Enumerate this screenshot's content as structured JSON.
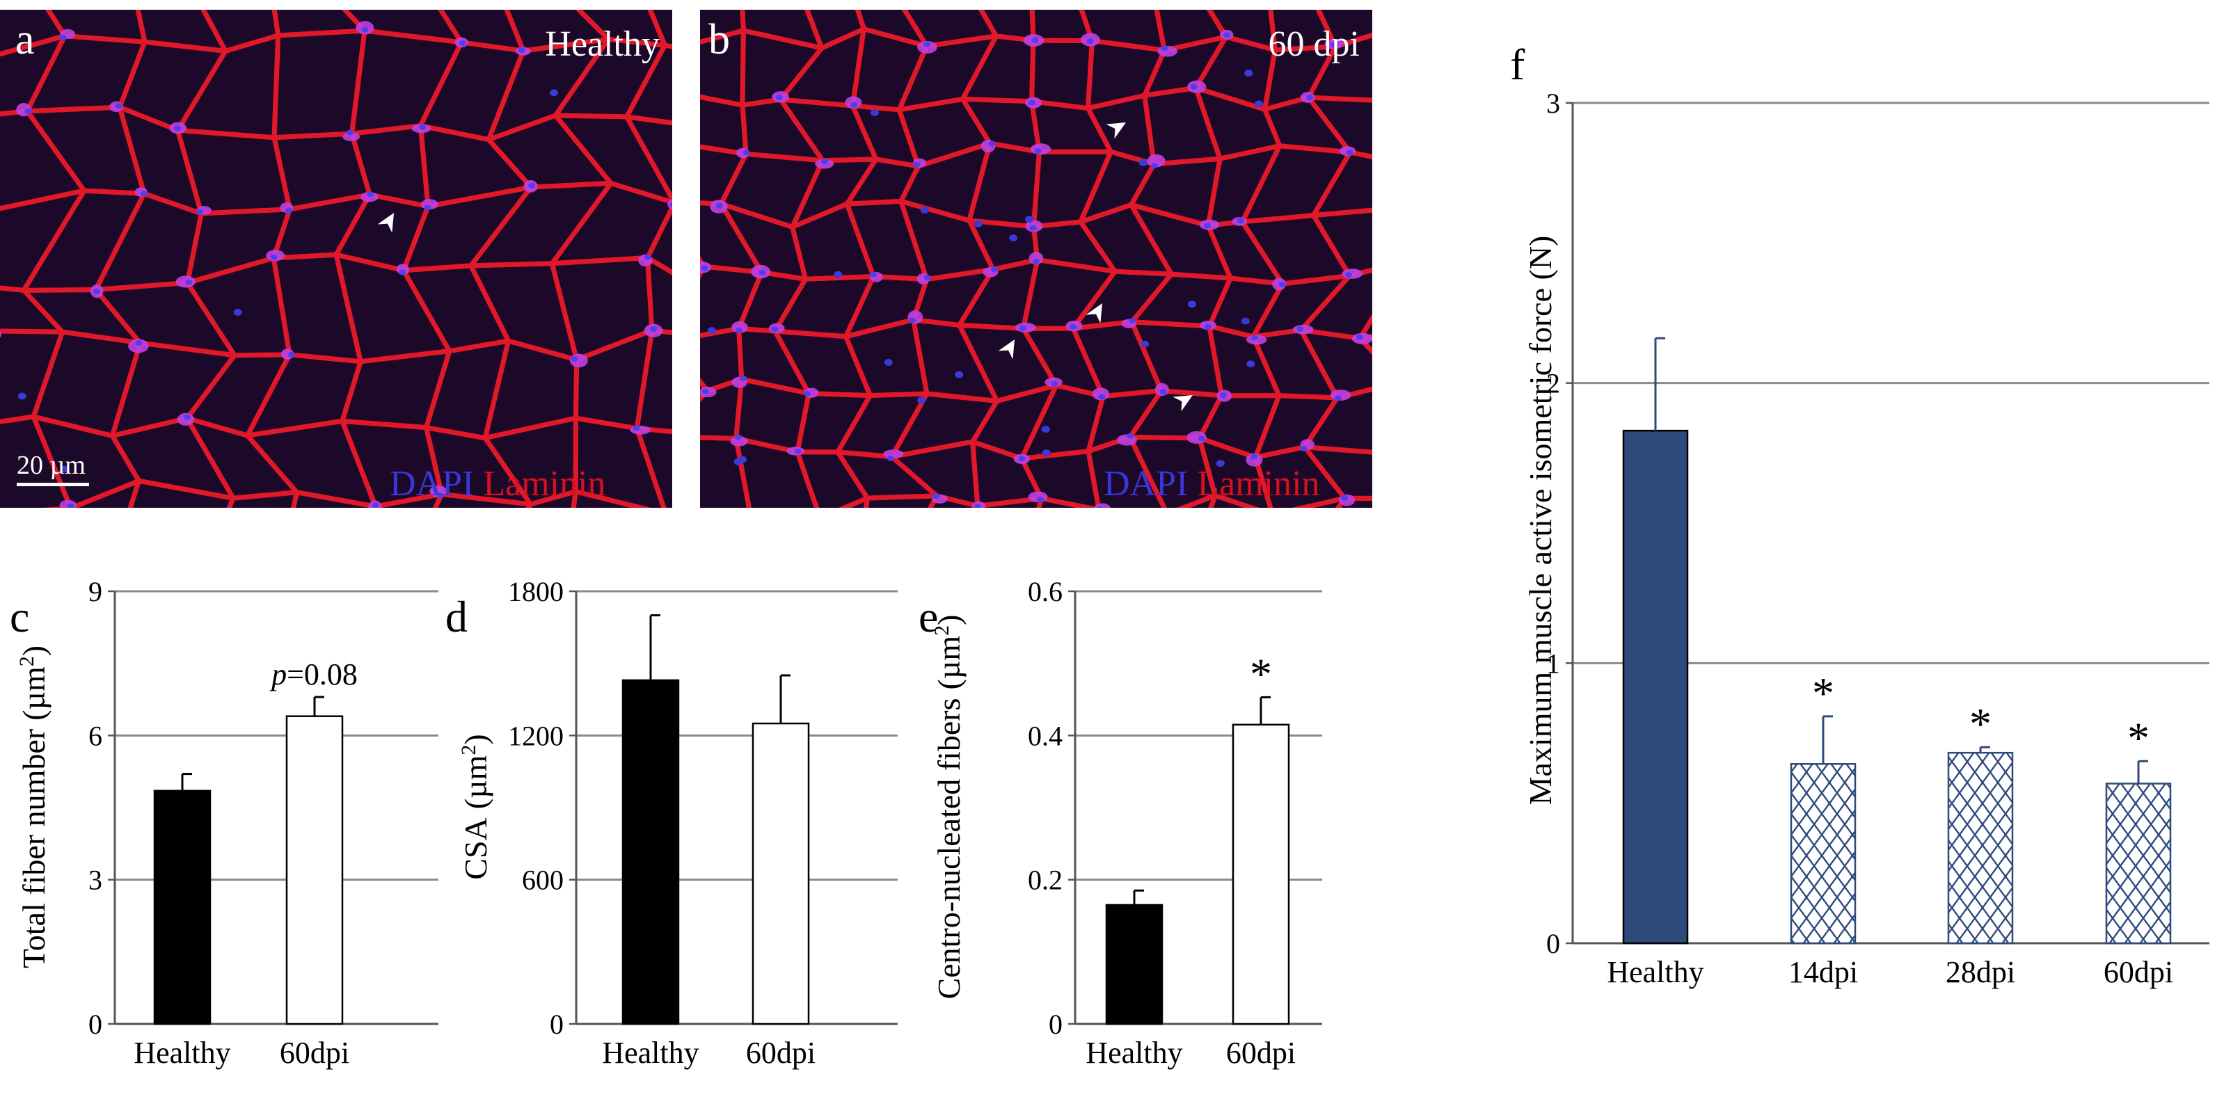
{
  "panels": {
    "a": {
      "letter": "a",
      "condition": "Healthy",
      "scale_bar": "20 µm",
      "stain_dapi": "DAPI",
      "stain_laminin": "Laminin"
    },
    "b": {
      "letter": "b",
      "condition": "60 dpi",
      "stain_dapi": "DAPI",
      "stain_laminin": "Laminin"
    }
  },
  "chart_data": [
    {
      "id": "c",
      "letter": "c",
      "type": "bar",
      "categories": [
        "Healthy",
        "60dpi"
      ],
      "values": [
        4.85,
        6.4
      ],
      "errors": [
        0.35,
        0.4
      ],
      "fills": [
        "#000000",
        "#ffffff"
      ],
      "ylabel_main": "Total fiber number",
      "ylabel_unit": "(µm",
      "ylabel_sup": "2",
      "ylabel_close": ")",
      "ylim": [
        0,
        9
      ],
      "yticks": [
        "0",
        "3",
        "6",
        "9"
      ],
      "annotation": {
        "prefix": "p",
        "text": "=0.08",
        "bar": 1
      },
      "grid": true
    },
    {
      "id": "d",
      "letter": "d",
      "type": "bar",
      "categories": [
        "Healthy",
        "60dpi"
      ],
      "values": [
        1430,
        1250
      ],
      "errors": [
        270,
        200
      ],
      "fills": [
        "#000000",
        "#ffffff"
      ],
      "ylabel_main": "CSA",
      "ylabel_unit": "(µm",
      "ylabel_sup": "2",
      "ylabel_close": ")",
      "ylim": [
        0,
        1800
      ],
      "yticks": [
        "0",
        "600",
        "1200",
        "1800"
      ],
      "grid": true
    },
    {
      "id": "e",
      "letter": "e",
      "type": "bar",
      "categories": [
        "Healthy",
        "60dpi"
      ],
      "values": [
        0.165,
        0.415
      ],
      "errors": [
        0.02,
        0.038
      ],
      "fills": [
        "#000000",
        "#ffffff"
      ],
      "ylabel_main": "Centro-nucleated  fibers",
      "ylabel_unit": "(µm",
      "ylabel_sup": "2",
      "ylabel_close": ")",
      "ylim": [
        0,
        0.6
      ],
      "yticks": [
        "0",
        "0.2",
        "0.4",
        "0.6"
      ],
      "asterisk": "*",
      "star_bars": [
        1
      ],
      "grid": true
    },
    {
      "id": "f",
      "letter": "f",
      "type": "bar",
      "categories": [
        "Healthy",
        "14dpi",
        "28dpi",
        "60dpi"
      ],
      "values": [
        1.83,
        0.64,
        0.68,
        0.57
      ],
      "errors": [
        0.33,
        0.17,
        0.02,
        0.08
      ],
      "fills": [
        "#2d4a7a",
        "hatch",
        "hatch",
        "hatch"
      ],
      "ylabel_main": "Maximum muscle active isometric force  (N)",
      "ylim": [
        0,
        3
      ],
      "yticks": [
        "0",
        "1",
        "2",
        "3"
      ],
      "asterisk": "*",
      "star_bars": [
        1,
        2,
        3
      ],
      "grid": true
    }
  ]
}
